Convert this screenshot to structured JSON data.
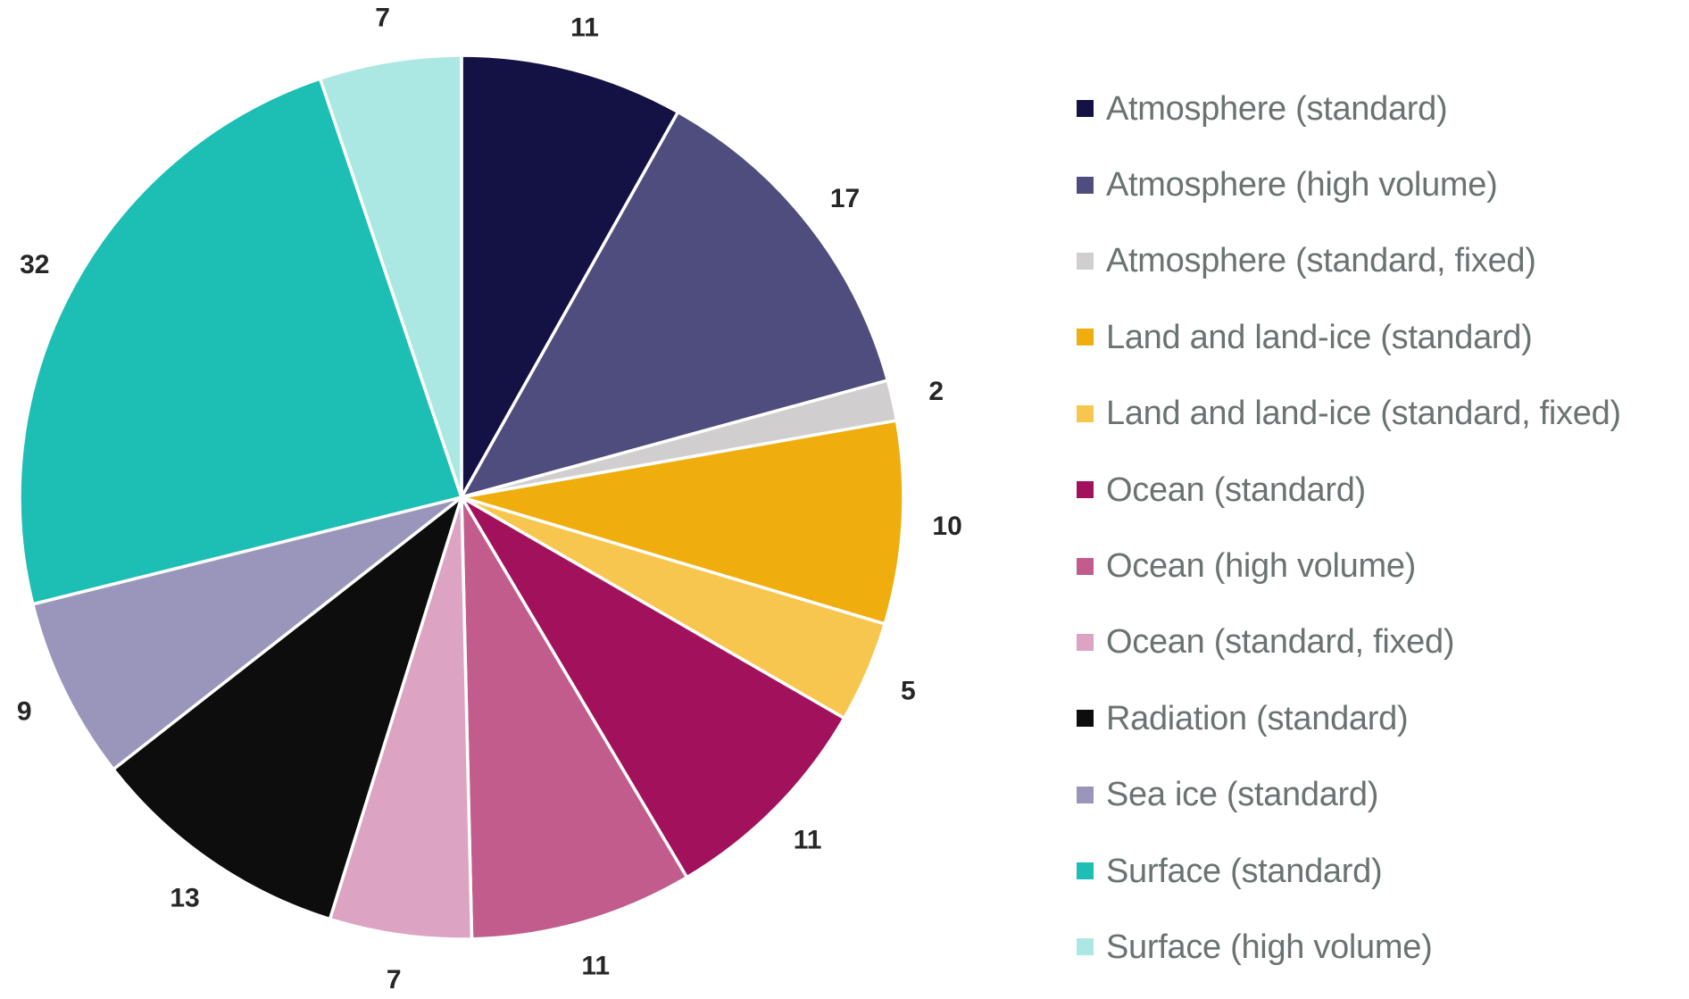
{
  "chart_data": {
    "type": "pie",
    "title": "",
    "total": 135,
    "start_angle_deg": 0,
    "direction": "clockwise",
    "data_labels": "outside",
    "legend_position": "right",
    "background_color": "#FFFFFF",
    "legend_text_color": "#6B7272",
    "data_label_color": "#262626",
    "slices": [
      {
        "label": "Atmosphere (standard)",
        "value": 11,
        "color": "#141244"
      },
      {
        "label": "Atmosphere (high volume)",
        "value": 17,
        "color": "#4F4D7D"
      },
      {
        "label": "Atmosphere (standard, fixed)",
        "value": 2,
        "color": "#D0CECE"
      },
      {
        "label": "Land and land-ice (standard)",
        "value": 10,
        "color": "#EFAD0E"
      },
      {
        "label": "Land and land-ice (standard, fixed)",
        "value": 5,
        "color": "#F7C64E"
      },
      {
        "label": "Ocean (standard)",
        "value": 11,
        "color": "#A2115C"
      },
      {
        "label": "Ocean (high volume)",
        "value": 11,
        "color": "#C25C8C"
      },
      {
        "label": "Ocean (standard, fixed)",
        "value": 7,
        "color": "#DCA4C2"
      },
      {
        "label": "Radiation (standard)",
        "value": 13,
        "color": "#0D0D0D"
      },
      {
        "label": "Sea ice (standard)",
        "value": 9,
        "color": "#9A96BB"
      },
      {
        "label": "Surface (standard)",
        "value": 32,
        "color": "#1DBEB4"
      },
      {
        "label": "Surface (high volume)",
        "value": 7,
        "color": "#ACE8E3"
      }
    ]
  }
}
